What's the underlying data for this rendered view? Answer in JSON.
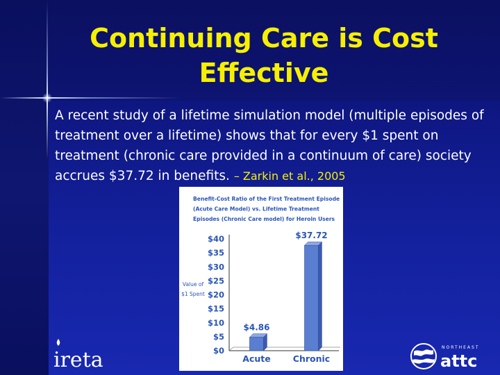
{
  "slide": {
    "title_line1": "Continuing Care is Cost",
    "title_line2": "Effective",
    "body_text": "A recent study of a lifetime simulation model (multiple episodes of treatment over a lifetime) shows that for every $1 spent on treatment (chronic care provided in a continuum of care) society accrues $37.72 in benefits. ",
    "citation": "– Zarkin et al., 2005"
  },
  "logos": {
    "left": "ireta",
    "right_small": "NORTHEAST",
    "right_main": "attc"
  },
  "colors": {
    "title": "#f6f000",
    "background": "#0d1478",
    "chart_title": "#2a55b8",
    "bar": "#5a7fd0",
    "text": "#ffffff"
  },
  "chart_data": {
    "type": "bar",
    "title_lines": [
      "Benefit-Cost Ratio of the First Treatment Episode",
      "(Acute Care Model) vs. Lifetime Treatment",
      "Episodes (Chronic Care model) for Heroin Users"
    ],
    "ylabel_lines": [
      "Value of",
      "$1 Spent"
    ],
    "categories": [
      "Acute",
      "Chronic"
    ],
    "values": [
      4.86,
      37.72
    ],
    "value_labels": [
      "$4.86",
      "$37.72"
    ],
    "yticks": [
      "$0",
      "$5",
      "$10",
      "$15",
      "$20",
      "$25",
      "$30",
      "$35",
      "$40"
    ],
    "ylim": [
      0,
      40
    ],
    "grid": false
  }
}
